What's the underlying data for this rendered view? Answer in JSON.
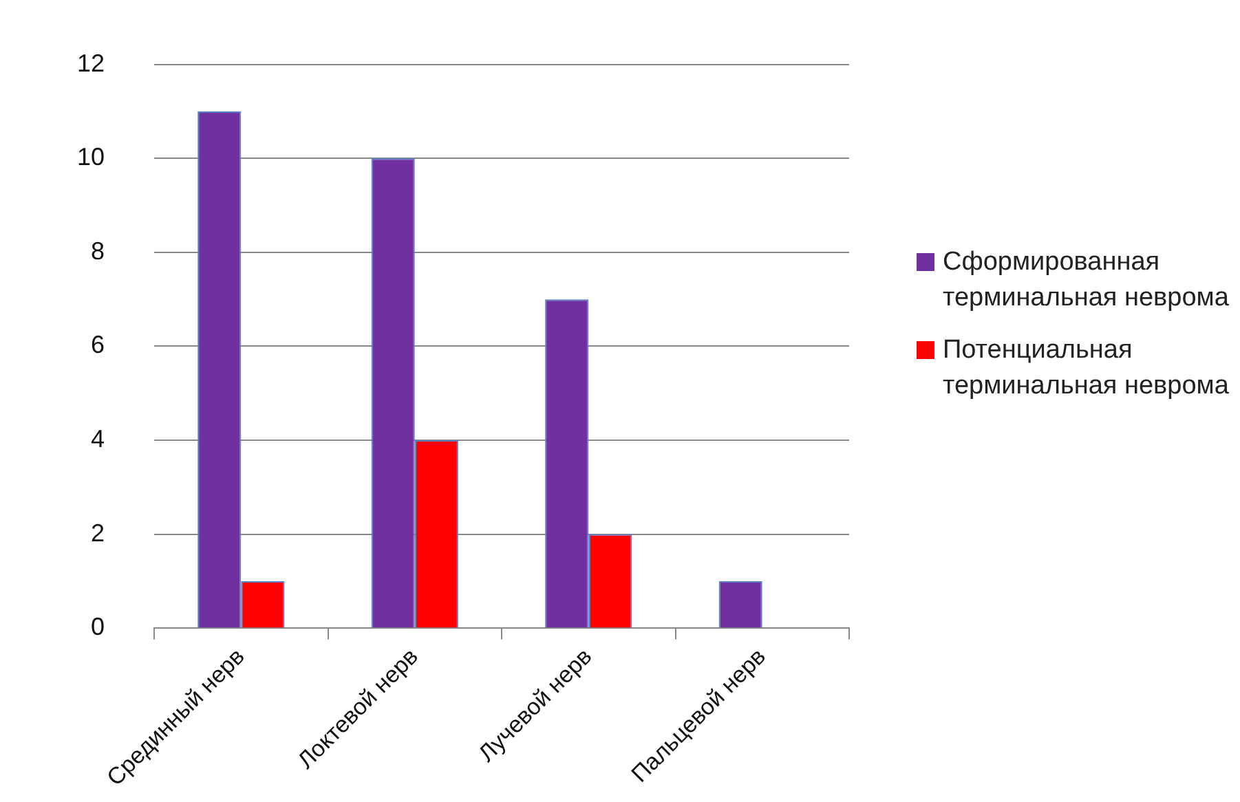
{
  "chart_data": {
    "type": "bar",
    "categories": [
      "Срединный нерв",
      "Локтевой нерв",
      "Лучевой нерв",
      "Пальцевой нерв"
    ],
    "series": [
      {
        "name": "Сформированная терминальная неврома",
        "color": "#7030a0",
        "values": [
          11,
          10,
          7,
          1
        ]
      },
      {
        "name": "Потенциальная терминальная неврома",
        "color": "#ff0000",
        "values": [
          1,
          4,
          2,
          0
        ]
      }
    ],
    "ylim": [
      0,
      12
    ],
    "yticks": [
      0,
      2,
      4,
      6,
      8,
      10,
      12
    ],
    "grid": "y",
    "legend": "right"
  }
}
